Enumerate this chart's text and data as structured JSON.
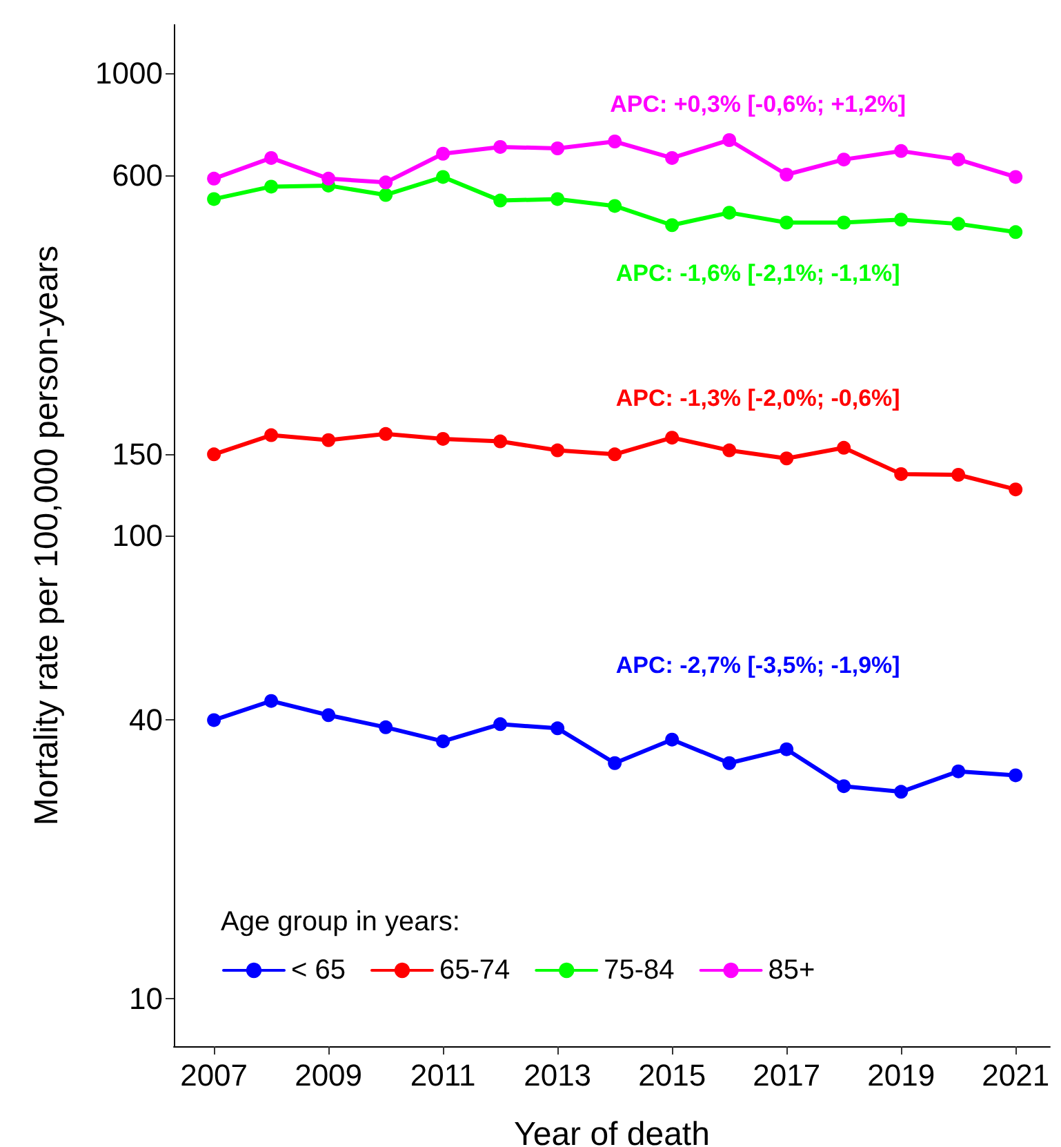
{
  "chart_data": {
    "type": "line",
    "xlabel": "Year of death",
    "ylabel": "Mortality rate per 100,000 person-years",
    "legend_title": "Age group in years:",
    "x": [
      2007,
      2008,
      2009,
      2010,
      2011,
      2012,
      2013,
      2014,
      2015,
      2016,
      2017,
      2018,
      2019,
      2020,
      2021
    ],
    "series": [
      {
        "name": "< 65",
        "color": "#0000ff",
        "values": [
          40,
          44,
          41,
          38.6,
          36,
          39.2,
          38.4,
          32.3,
          36.3,
          32.3,
          34.6,
          28.8,
          28,
          31,
          30.4
        ]
      },
      {
        "name": "65-74",
        "color": "#ff0000",
        "values": [
          150,
          165,
          161,
          166,
          162,
          160,
          153,
          150,
          163,
          153,
          147,
          155,
          136,
          135.5,
          126
        ]
      },
      {
        "name": "75-84",
        "color": "#00ff00",
        "values": [
          534,
          568,
          571,
          545,
          596,
          530,
          534,
          516,
          469,
          499,
          475,
          475,
          482,
          472,
          453
        ]
      },
      {
        "name": "85+",
        "color": "#ff00ff",
        "values": [
          591,
          655,
          591,
          580,
          669,
          692,
          687,
          711,
          655,
          716,
          603,
          650,
          678,
          650,
          596
        ]
      }
    ],
    "annotations": [
      "APC: -2,7% [-3,5%; -1,9%]",
      "APC: -1,3% [-2,0%; -0,6%]",
      "APC: -1,6% [-2,1%; -1,1%]",
      "APC: +0,3% [-0,6%; +1,2%]"
    ],
    "log": "y",
    "xlim": [
      2006.3,
      2021.6
    ],
    "xticks": [
      2007,
      2009,
      2011,
      2013,
      2015,
      2017,
      2019,
      2021
    ],
    "ylim": [
      7.9,
      1270
    ],
    "yticks": [
      10,
      40,
      100,
      150,
      600,
      1000
    ],
    "grid": false,
    "legend": "bottom left",
    "marker": "circle",
    "line_style": "solid"
  }
}
